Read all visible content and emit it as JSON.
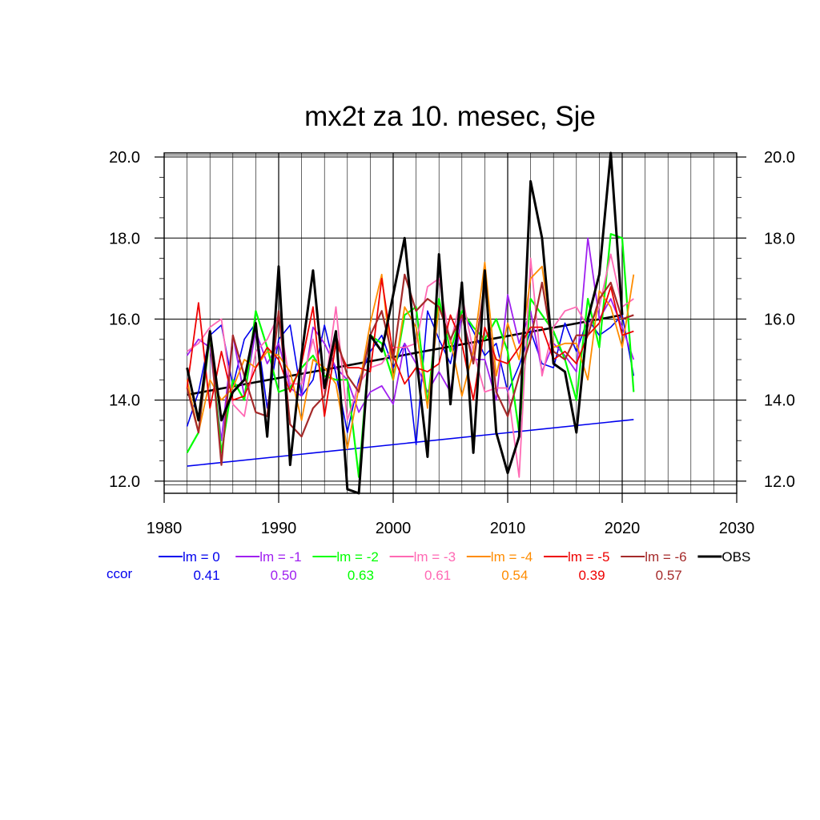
{
  "chart_data": {
    "type": "line",
    "title": "mx2t za 10. mesec, Sje",
    "xlabel": "",
    "ylabel": "",
    "xlim": [
      1980,
      2030
    ],
    "ylim": [
      11.7,
      20.1
    ],
    "x_ticks": [
      "1980",
      "1990",
      "2000",
      "2010",
      "2020",
      "2030"
    ],
    "y_ticks": [
      "12.0",
      "14.0",
      "16.0",
      "18.0",
      "20.0"
    ],
    "y_tick_values": [
      12,
      14,
      16,
      18,
      20
    ],
    "x_tick_values": [
      1980,
      1990,
      2000,
      2010,
      2020,
      2030
    ],
    "grid": true,
    "legend_position": "bottom",
    "ccor_label": "ccor",
    "years": [
      1982,
      1983,
      1984,
      1985,
      1986,
      1987,
      1988,
      1989,
      1990,
      1991,
      1992,
      1993,
      1994,
      1995,
      1996,
      1997,
      1998,
      1999,
      2000,
      2001,
      2002,
      2003,
      2004,
      2005,
      2006,
      2007,
      2008,
      2009,
      2010,
      2011,
      2012,
      2013,
      2014,
      2015,
      2016,
      2017,
      2018,
      2019,
      2020,
      2021
    ],
    "series": [
      {
        "name": "lm = 0",
        "ccor": "0.41",
        "color": "#0000ee",
        "width": 1.6,
        "values": [
          13.35,
          14.2,
          15.6,
          15.85,
          14.35,
          15.5,
          15.9,
          13.8,
          15.5,
          15.85,
          14.1,
          14.5,
          15.85,
          14.65,
          13.2,
          14.5,
          15.2,
          15.6,
          14.8,
          15.4,
          12.9,
          16.2,
          15.5,
          14.9,
          16.2,
          15.7,
          15.1,
          15.4,
          14.2,
          14.85,
          15.7,
          14.9,
          14.8,
          15.9,
          15.2,
          16.0,
          15.6,
          15.8,
          16.1,
          14.6
        ],
        "trend": [
          12.37,
          13.52
        ]
      },
      {
        "name": "lm = -1",
        "ccor": "0.50",
        "color": "#a020f0",
        "width": 1.8,
        "values": [
          15.1,
          15.5,
          15.3,
          13.0,
          15.6,
          14.1,
          15.7,
          14.9,
          15.4,
          14.3,
          14.1,
          15.8,
          15.4,
          14.8,
          14.5,
          13.7,
          14.2,
          14.35,
          13.9,
          15.4,
          14.9,
          14.2,
          14.7,
          14.2,
          16.1,
          15.0,
          15.0,
          14.0,
          16.6,
          15.4,
          16.2,
          14.7,
          15.4,
          15.1,
          14.7,
          18.0,
          16.0,
          16.5,
          15.8,
          15.0
        ]
      },
      {
        "name": "lm = -2",
        "ccor": "0.63",
        "color": "#00ff00",
        "width": 2.2,
        "values": [
          12.7,
          13.2,
          15.6,
          12.7,
          14.5,
          14.0,
          16.2,
          15.3,
          14.2,
          14.3,
          14.8,
          15.1,
          14.6,
          14.5,
          14.5,
          12.1,
          15.6,
          15.4,
          14.5,
          16.1,
          16.3,
          13.9,
          16.5,
          15.2,
          16.2,
          15.8,
          15.5,
          16.0,
          15.2,
          13.2,
          16.5,
          16.1,
          15.7,
          15.0,
          14.0,
          16.5,
          15.3,
          18.1,
          18.0,
          14.2
        ]
      },
      {
        "name": "lm = -3",
        "ccor": "0.61",
        "color": "#ff69b4",
        "width": 1.8,
        "values": [
          15.2,
          15.4,
          15.8,
          16.0,
          13.9,
          13.6,
          15.2,
          15.5,
          16.1,
          14.4,
          14.4,
          15.5,
          14.2,
          16.3,
          13.5,
          14.4,
          14.8,
          14.9,
          15.3,
          15.3,
          15.4,
          16.8,
          17.0,
          15.4,
          16.6,
          15.2,
          14.2,
          14.3,
          14.3,
          12.1,
          17.5,
          14.6,
          15.8,
          16.2,
          16.3,
          15.8,
          16.3,
          17.6,
          16.3,
          16.5
        ]
      },
      {
        "name": "lm = -4",
        "ccor": "0.54",
        "color": "#ff8c00",
        "width": 1.8,
        "values": [
          14.5,
          13.2,
          14.5,
          14.0,
          14.3,
          15.0,
          14.8,
          15.2,
          15.1,
          14.7,
          13.5,
          15.0,
          14.8,
          14.4,
          12.8,
          14.3,
          15.9,
          17.1,
          14.5,
          16.3,
          15.8,
          13.8,
          16.3,
          15.5,
          14.1,
          15.2,
          17.4,
          14.6,
          15.9,
          15.0,
          17.0,
          17.3,
          15.3,
          15.4,
          15.4,
          14.5,
          16.7,
          16.3,
          15.3,
          17.1
        ]
      },
      {
        "name": "lm = -5",
        "ccor": "0.39",
        "color": "#ee0000",
        "width": 1.8,
        "values": [
          14.3,
          16.4,
          13.8,
          15.2,
          14.0,
          14.1,
          14.8,
          15.3,
          15.0,
          14.2,
          14.9,
          16.3,
          13.6,
          15.4,
          14.8,
          14.8,
          14.7,
          17.0,
          15.1,
          14.4,
          14.8,
          14.7,
          14.9,
          16.1,
          15.4,
          14.0,
          15.8,
          15.0,
          14.9,
          15.3,
          15.8,
          15.8,
          15.0,
          15.2,
          14.9,
          15.6,
          15.9,
          16.8,
          15.6,
          15.7
        ]
      },
      {
        "name": "lm = -6",
        "ccor": "0.57",
        "color": "#a52a2a",
        "width": 2.2,
        "values": [
          14.3,
          13.2,
          15.7,
          12.4,
          15.6,
          14.6,
          13.7,
          13.6,
          16.2,
          13.4,
          13.1,
          13.8,
          14.1,
          15.6,
          14.6,
          14.2,
          15.6,
          16.2,
          15.0,
          17.1,
          16.2,
          16.5,
          16.3,
          15.5,
          16.1,
          14.9,
          16.9,
          14.2,
          13.6,
          14.6,
          15.5,
          16.9,
          15.2,
          15.0,
          15.6,
          15.6,
          16.5,
          16.9,
          16.0,
          16.1
        ]
      },
      {
        "name": "OBS",
        "ccor": "",
        "color": "#000000",
        "width": 3.0,
        "values": [
          14.8,
          13.5,
          15.7,
          13.5,
          14.2,
          14.5,
          15.9,
          13.1,
          17.3,
          12.4,
          15.1,
          17.2,
          14.3,
          15.7,
          11.8,
          11.7,
          15.6,
          15.2,
          16.6,
          18.0,
          15.1,
          12.6,
          17.6,
          13.9,
          16.9,
          12.7,
          17.2,
          13.2,
          12.2,
          13.1,
          19.4,
          18.0,
          14.9,
          14.7,
          13.2,
          16.0,
          17.1,
          20.1,
          16.1,
          null
        ],
        "trend": [
          14.13,
          16.1
        ]
      }
    ]
  }
}
